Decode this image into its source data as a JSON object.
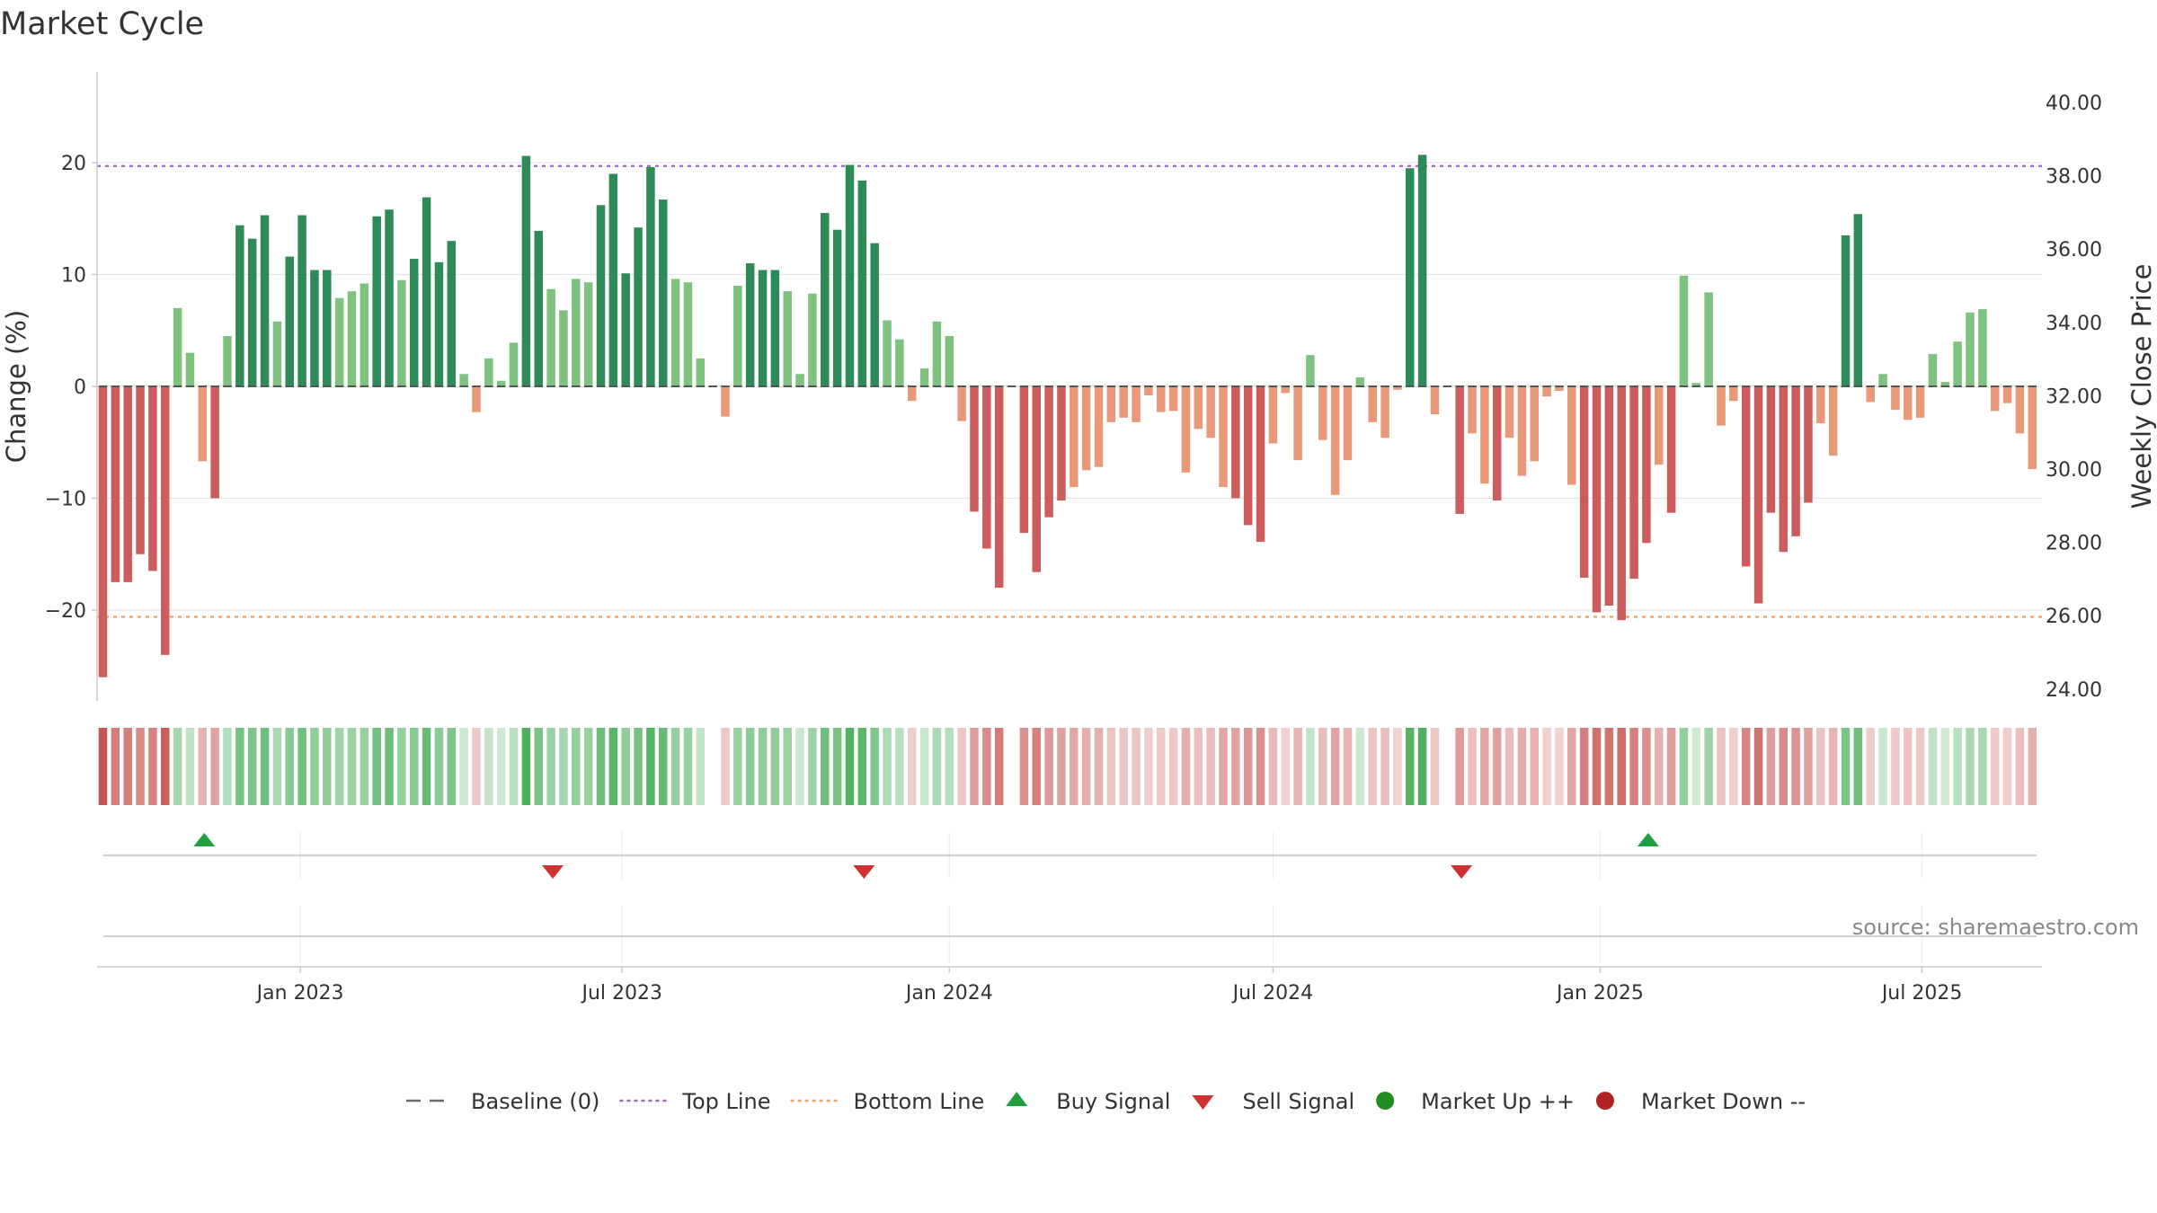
{
  "chart_data": {
    "type": "bar",
    "title": "Market Cycle",
    "ylabel": "Change (%)",
    "ylabel_right": "Weekly Close Price",
    "ylim": [
      -28,
      28
    ],
    "ylim_right": [
      23.2,
      41.2
    ],
    "yticks": [
      -20,
      -10,
      0,
      10,
      20
    ],
    "yticks_right": [
      "24.00",
      "26.00",
      "28.00",
      "30.00",
      "32.00",
      "34.00",
      "36.00",
      "38.00",
      "40.00"
    ],
    "x_start": "2022-09-12",
    "x_end": "2025-09-08",
    "xticks": [
      {
        "date": "2023-01-01",
        "label": "Jan 2023"
      },
      {
        "date": "2023-07-01",
        "label": "Jul 2023"
      },
      {
        "date": "2024-01-01",
        "label": "Jan 2024"
      },
      {
        "date": "2024-07-01",
        "label": "Jul 2024"
      },
      {
        "date": "2025-01-01",
        "label": "Jan 2025"
      },
      {
        "date": "2025-07-01",
        "label": "Jul 2025"
      }
    ],
    "top_line": 19.7,
    "bottom_line": -20.6,
    "values": [
      -26,
      -17.5,
      -17.5,
      -15,
      -16.5,
      -24,
      7,
      3,
      -6.7,
      -10,
      4.5,
      14.4,
      13.2,
      15.3,
      5.8,
      11.6,
      15.3,
      10.4,
      10.4,
      7.9,
      8.5,
      9.2,
      15.2,
      15.8,
      9.5,
      11.4,
      16.9,
      11.1,
      13,
      1.1,
      -2.3,
      2.5,
      0.5,
      3.9,
      20.6,
      13.9,
      8.7,
      6.8,
      9.6,
      9.3,
      16.2,
      19,
      10.1,
      14.2,
      19.6,
      16.7,
      9.6,
      9.3,
      2.5,
      0,
      -2.7,
      9,
      11,
      10.4,
      10.4,
      8.5,
      1.1,
      8.3,
      15.5,
      14,
      19.8,
      18.4,
      12.8,
      5.9,
      4.2,
      -1.3,
      1.6,
      5.8,
      4.5,
      -3.1,
      -11.2,
      -14.5,
      -18,
      0,
      -13.1,
      -16.6,
      -11.7,
      -10.2,
      -9,
      -7.5,
      -7.2,
      -3.2,
      -2.8,
      -3.2,
      -0.8,
      -2.3,
      -2.2,
      -7.7,
      -3.8,
      -4.6,
      -9,
      -10,
      -12.4,
      -13.9,
      -5.1,
      -0.6,
      -6.6,
      2.8,
      -4.8,
      -9.7,
      -6.6,
      0.8,
      -3.2,
      -4.6,
      -0.3,
      19.5,
      20.7,
      -2.5,
      0,
      -11.4,
      -4.2,
      -8.7,
      -10.2,
      -4.6,
      -8,
      -6.7,
      -0.9,
      -0.4,
      -8.8,
      -17.1,
      -20.2,
      -19.6,
      -20.9,
      -17.2,
      -14,
      -7,
      -11.3,
      9.9,
      0.3,
      8.4,
      -3.5,
      -1.3,
      -16.1,
      -19.4,
      -11.3,
      -14.8,
      -13.4,
      -10.4,
      -3.3,
      -6.2,
      13.5,
      15.4,
      -1.4,
      1.1,
      -2.1,
      -3,
      -2.8,
      2.9,
      0.4,
      4,
      6.6,
      6.9,
      -2.2,
      -1.5,
      -4.2,
      -7.4
    ],
    "signals": [
      {
        "date": "2022-11-08",
        "type": "buy"
      },
      {
        "date": "2023-05-23",
        "type": "sell"
      },
      {
        "date": "2023-11-14",
        "type": "sell"
      },
      {
        "date": "2024-10-15",
        "type": "sell"
      },
      {
        "date": "2025-01-28",
        "type": "buy"
      }
    ],
    "legend": [
      {
        "name": "Baseline (0)",
        "symbol": "dash",
        "color": "#666666"
      },
      {
        "name": "Top Line",
        "symbol": "dot",
        "color": "#9966cc"
      },
      {
        "name": "Bottom Line",
        "symbol": "dot",
        "color": "#f0a060"
      },
      {
        "name": "Buy Signal",
        "symbol": "triangle-up",
        "color": "#1fa040"
      },
      {
        "name": "Sell Signal",
        "symbol": "triangle-down",
        "color": "#d03030"
      },
      {
        "name": "Market Up ++",
        "symbol": "circle",
        "color": "#228b22"
      },
      {
        "name": "Market Down --",
        "symbol": "circle",
        "color": "#b22222"
      }
    ],
    "source": "source: sharemaestro.com",
    "colors": {
      "strong_up": "#2e8b57",
      "mild_up": "#7fc27f",
      "mild_down": "#e8997a",
      "strong_down": "#cd5c5c",
      "grid": "#e6e6e6",
      "axis": "#cccccc"
    }
  }
}
